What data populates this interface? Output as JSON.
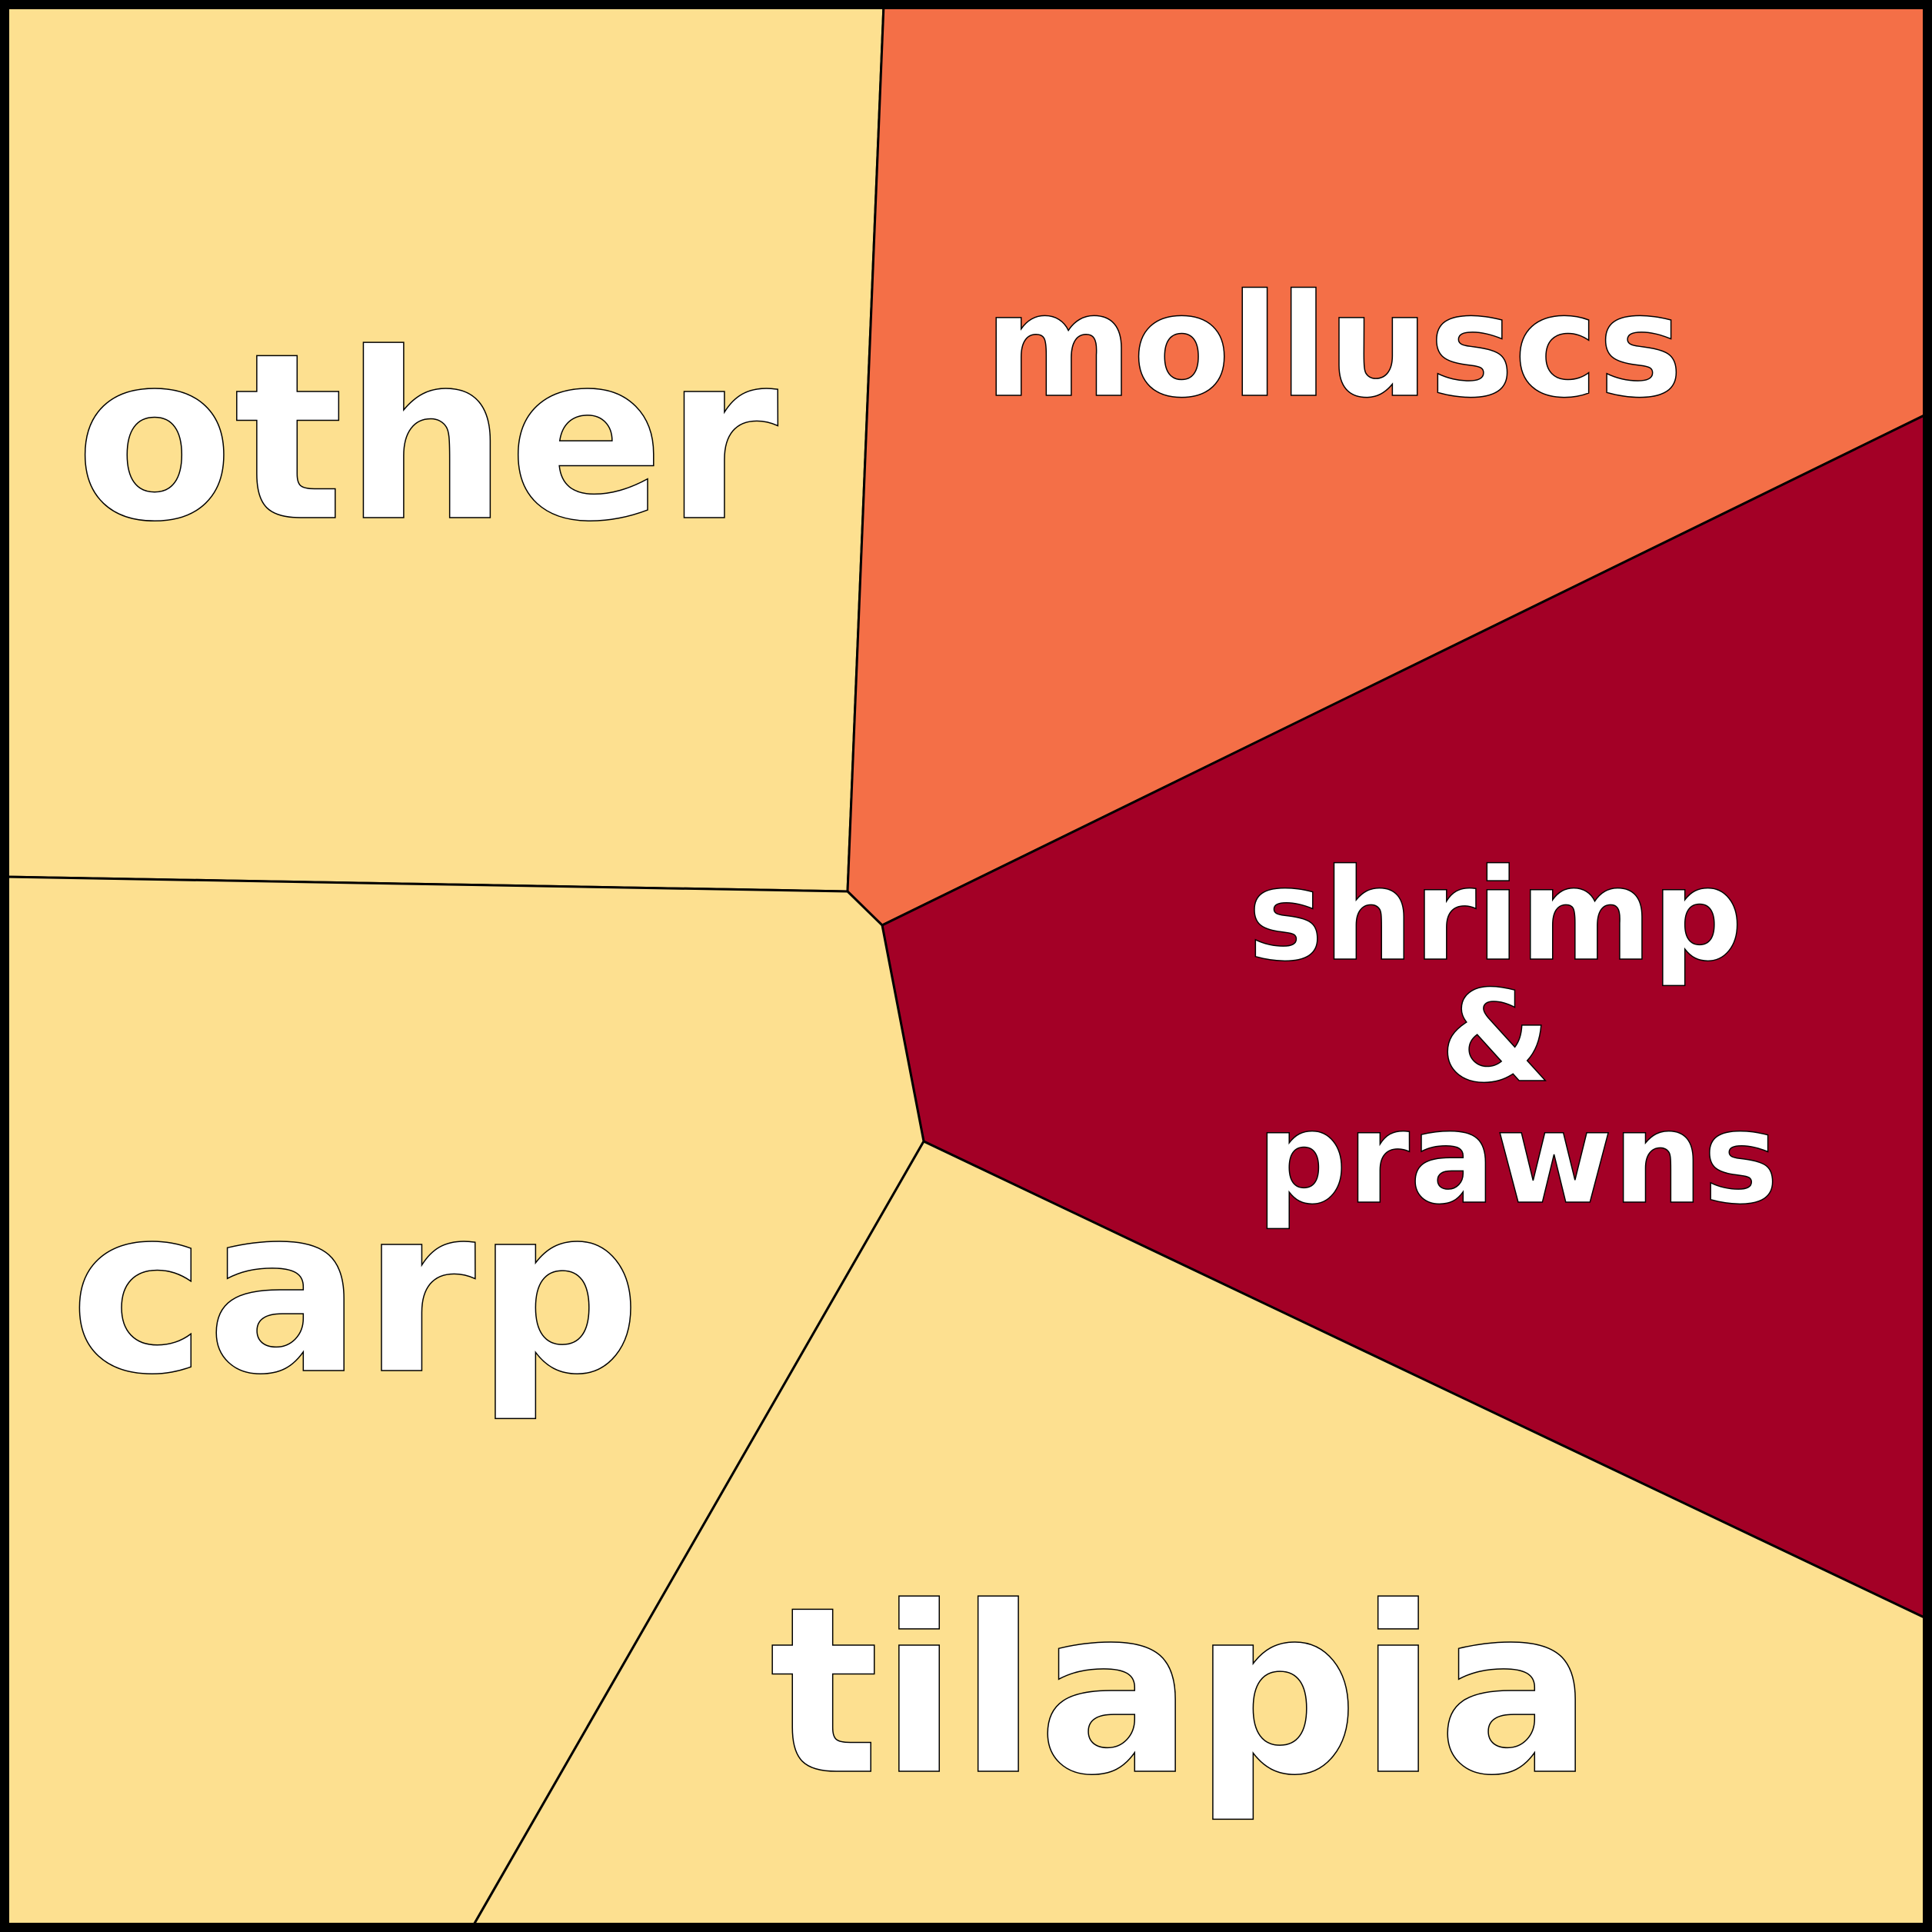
{
  "diagram": {
    "colors": {
      "light": "#fde090",
      "orange": "#f46f47",
      "crimson": "#a30026",
      "border": "#000000",
      "text": "#ffffff"
    },
    "cells": [
      {
        "id": "other",
        "label": "other",
        "fill": "#fde090"
      },
      {
        "id": "molluscs",
        "label": "molluscs",
        "fill": "#f46f47"
      },
      {
        "id": "shrimp",
        "label_lines": [
          "shrimp",
          "&",
          "prawns"
        ],
        "fill": "#a30026"
      },
      {
        "id": "carp",
        "label": "carp",
        "fill": "#fde090"
      },
      {
        "id": "tilapia",
        "label": "tilapia",
        "fill": "#fde090"
      }
    ]
  }
}
